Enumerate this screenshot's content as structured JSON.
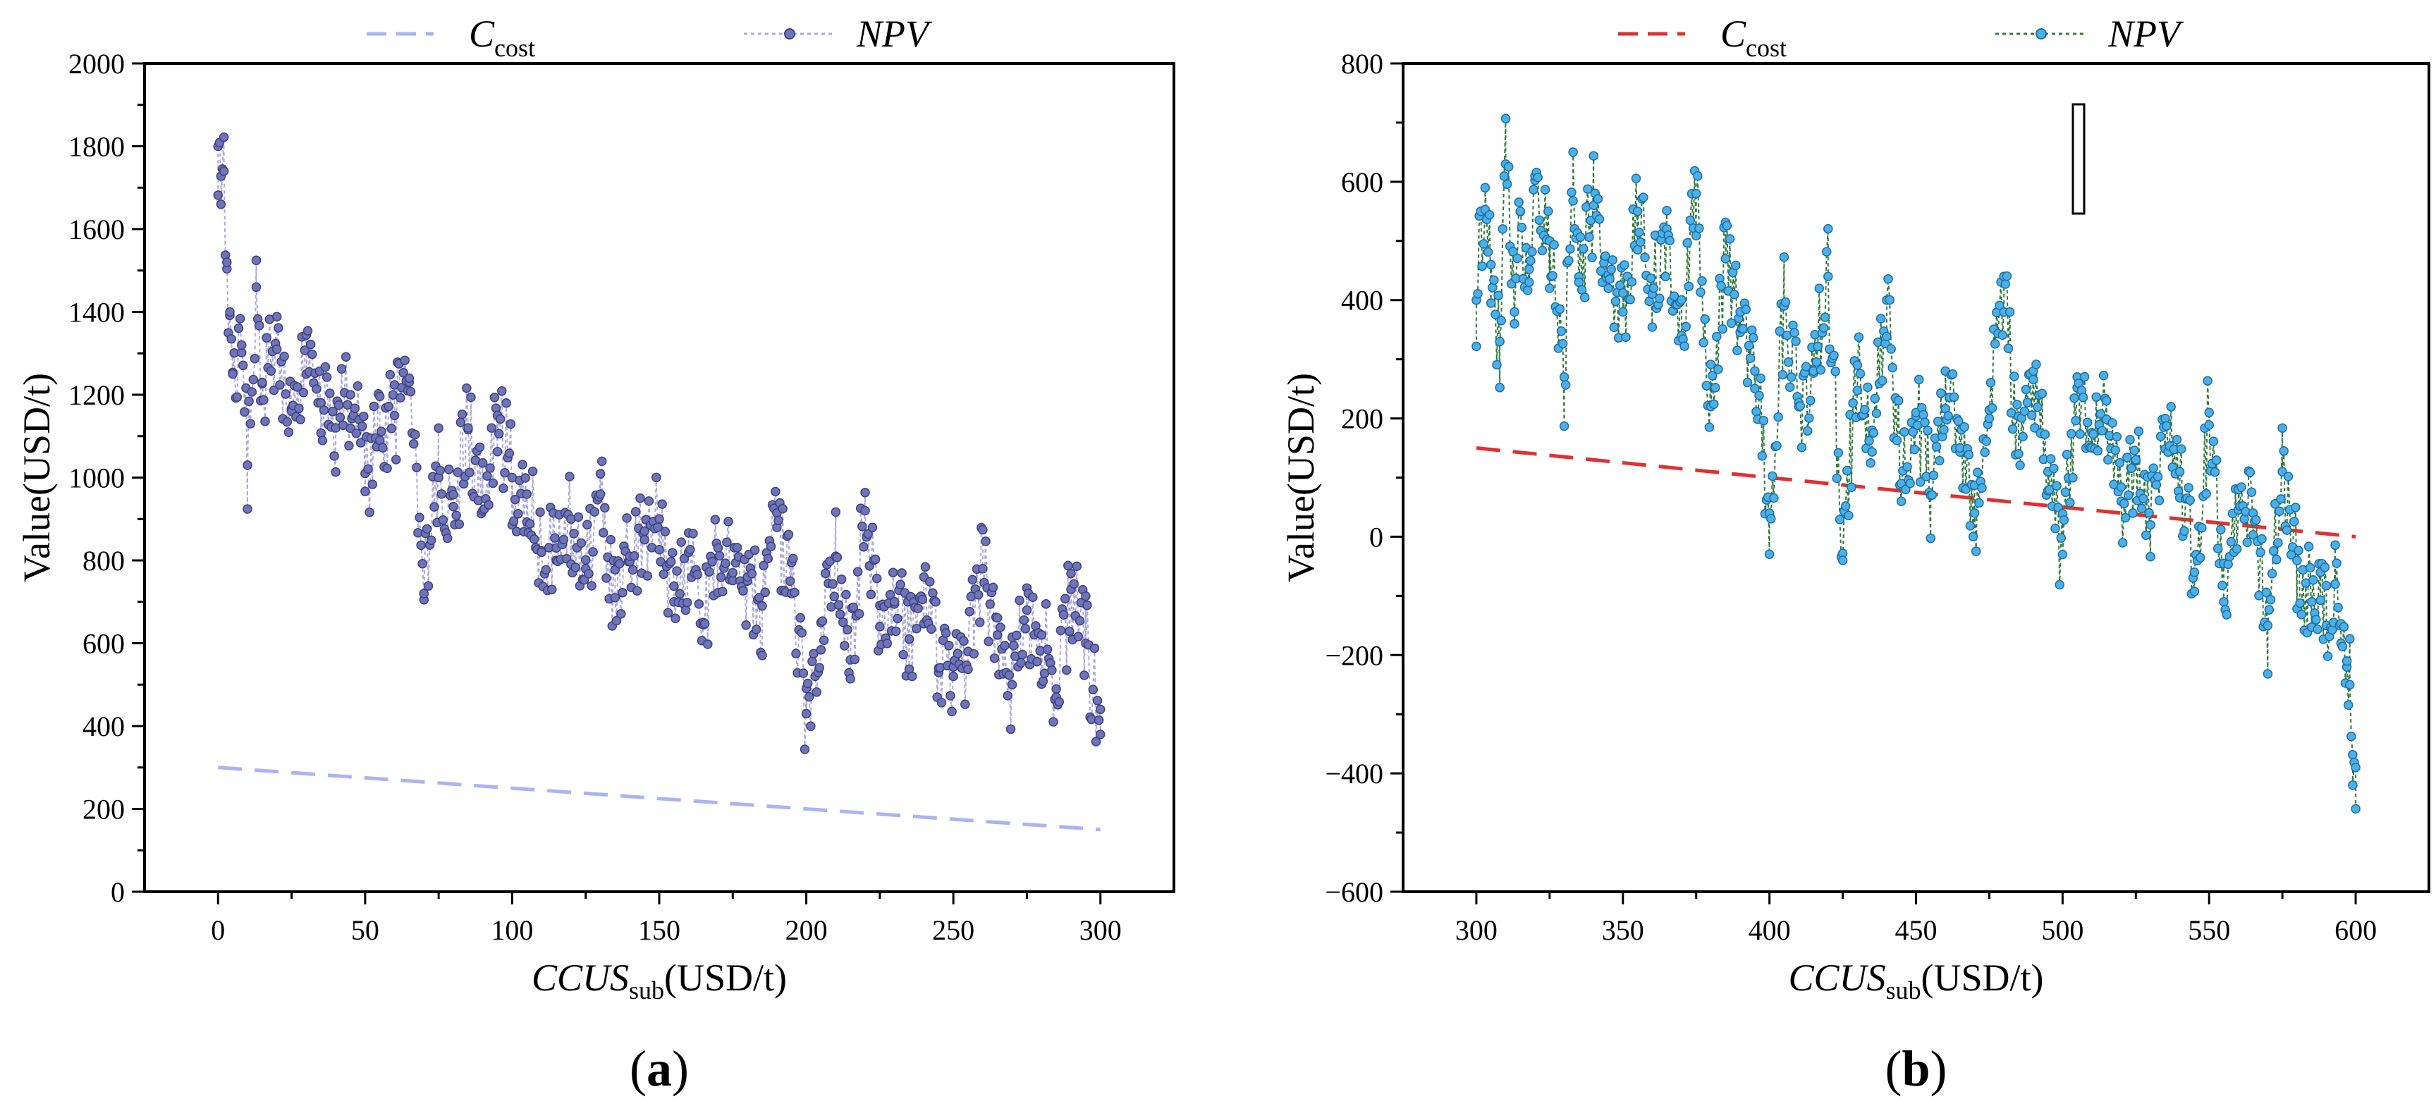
{
  "chart_data": [
    {
      "id": "a",
      "type": "line",
      "panel_label": "(a)",
      "panel_letter": "a",
      "xlabel": {
        "main": "CCUS",
        "sub": "sub",
        "unit": "(USD/t)"
      },
      "ylabel": "Value(USD/t)",
      "xlim": [
        -25,
        325
      ],
      "ylim": [
        0,
        2000
      ],
      "xticks": [
        0,
        50,
        100,
        150,
        200,
        250,
        300
      ],
      "yticks": [
        0,
        200,
        400,
        600,
        800,
        1000,
        1200,
        1400,
        1600,
        1800,
        2000
      ],
      "legend": [
        {
          "name_main": "C",
          "name_sub": "cost",
          "style": "dashed"
        },
        {
          "name": "NPV",
          "style": "dotted-markers"
        }
      ],
      "colors": {
        "cost": "#aab4f2",
        "npv_line": "#aaaadd",
        "npv_marker": "#6f74b8",
        "npv_marker_edge": "#3d4280"
      },
      "series": [
        {
          "name": "C_cost",
          "x": [
            0,
            300
          ],
          "y": [
            300,
            150
          ]
        },
        {
          "name": "NPV",
          "x": [
            0,
            1,
            2,
            3,
            4,
            5,
            8,
            10,
            13,
            15,
            20,
            25,
            30,
            35,
            40,
            45,
            50,
            55,
            60,
            65,
            70,
            75,
            80,
            85,
            90,
            95,
            100,
            105,
            110,
            115,
            120,
            125,
            130,
            135,
            140,
            145,
            150,
            155,
            160,
            165,
            170,
            175,
            180,
            185,
            190,
            195,
            200,
            205,
            210,
            215,
            220,
            225,
            230,
            235,
            240,
            245,
            250,
            255,
            260,
            265,
            270,
            275,
            280,
            285,
            290,
            295,
            300
          ],
          "y": [
            1800,
            1660,
            1740,
            1520,
            1400,
            1250,
            1320,
            1030,
            1460,
            1230,
            1310,
            1160,
            1250,
            1180,
            1120,
            1200,
            1010,
            1090,
            1150,
            1240,
            720,
            1000,
            930,
            1120,
            920,
            1150,
            1000,
            960,
            820,
            800,
            900,
            780,
            960,
            710,
            810,
            850,
            900,
            700,
            820,
            650,
            830,
            770,
            760,
            690,
            880,
            720,
            430,
            650,
            810,
            560,
            920,
            640,
            700,
            610,
            760,
            540,
            520,
            580,
            780,
            620,
            500,
            680,
            620,
            470,
            730,
            600,
            380
          ]
        }
      ]
    },
    {
      "id": "b",
      "type": "line",
      "panel_label": "(b)",
      "panel_letter": "b",
      "xlabel": {
        "main": "CCUS",
        "sub": "sub",
        "unit": "(USD/t)"
      },
      "ylabel": "Value(USD/t)",
      "xlim": [
        275,
        625
      ],
      "ylim": [
        -600,
        800
      ],
      "xticks": [
        300,
        350,
        400,
        450,
        500,
        550,
        600
      ],
      "yticks": [
        -600,
        -400,
        -200,
        0,
        200,
        400,
        600,
        800
      ],
      "legend": [
        {
          "name_main": "C",
          "name_sub": "cost",
          "style": "dashed"
        },
        {
          "name": "NPV",
          "style": "dotted-markers"
        }
      ],
      "colors": {
        "cost": "#e03030",
        "npv_line": "#2f7a3a",
        "npv_marker": "#4bb0ea",
        "npv_marker_edge": "#1f6f9f"
      },
      "series": [
        {
          "name": "C_cost",
          "x": [
            300,
            600
          ],
          "y": [
            150,
            0
          ]
        },
        {
          "name": "NPV",
          "x": [
            300,
            303,
            305,
            308,
            310,
            313,
            315,
            318,
            320,
            325,
            330,
            333,
            335,
            340,
            345,
            350,
            355,
            360,
            365,
            370,
            375,
            380,
            385,
            390,
            395,
            400,
            405,
            410,
            415,
            420,
            425,
            430,
            435,
            440,
            445,
            450,
            455,
            460,
            465,
            470,
            475,
            480,
            485,
            490,
            495,
            500,
            505,
            510,
            515,
            520,
            525,
            530,
            535,
            540,
            545,
            550,
            555,
            560,
            565,
            570,
            575,
            580,
            585,
            588,
            590,
            593,
            595,
            597,
            598,
            599,
            600
          ],
          "y": [
            400,
            590,
            460,
            330,
            630,
            380,
            550,
            430,
            610,
            500,
            270,
            650,
            430,
            560,
            420,
            380,
            550,
            410,
            520,
            340,
            580,
            220,
            470,
            380,
            280,
            40,
            390,
            220,
            280,
            440,
            -40,
            290,
            180,
            400,
            90,
            210,
            70,
            280,
            150,
            40,
            200,
            440,
            140,
            280,
            110,
            -30,
            270,
            150,
            230,
            60,
            130,
            20,
            200,
            110,
            -60,
            210,
            -110,
            80,
            40,
            -150,
            110,
            -40,
            -110,
            -60,
            -150,
            -80,
            -180,
            -210,
            -250,
            -420,
            -460
          ]
        }
      ]
    }
  ]
}
